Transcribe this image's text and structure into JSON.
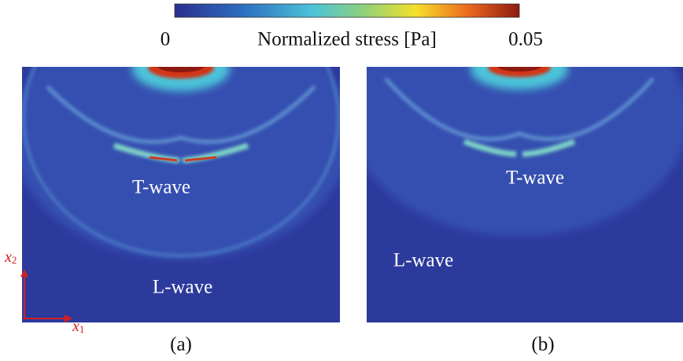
{
  "colorbar": {
    "min": 0,
    "label": "Normalized stress [Pa]",
    "max": 0.05
  },
  "panels": [
    {
      "caption": "(a)",
      "t_wave": "T-wave",
      "l_wave": "L-wave"
    },
    {
      "caption": "(b)",
      "t_wave": "T-wave",
      "l_wave": "L-wave"
    }
  ],
  "axes": {
    "x1": "x",
    "x1_sub": "1",
    "x2": "x",
    "x2_sub": "2"
  }
}
